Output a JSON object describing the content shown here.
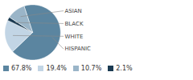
{
  "chart_data": {
    "type": "pie",
    "categories": [
      "HISPANIC",
      "WHITE",
      "BLACK",
      "ASIAN"
    ],
    "values": [
      67.8,
      19.4,
      2.1,
      10.7
    ],
    "colors": [
      "#5b85a0",
      "#c2d5e5",
      "#1a3a52",
      "#9ab5c8"
    ],
    "value_labels": [
      "67.8%",
      "19.4%",
      "2.1%",
      "10.7%"
    ],
    "legend": "lower left"
  }
}
